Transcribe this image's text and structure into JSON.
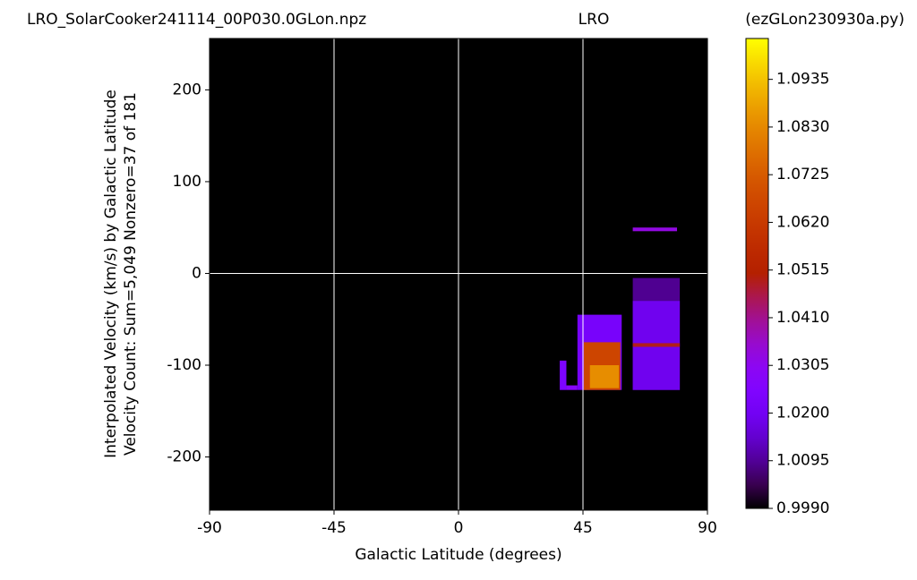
{
  "chart_data": {
    "type": "heatmap",
    "title": "LRO_SolarCooker241114_00P030.0GLon.npz",
    "subtitle": "LRO",
    "source": "(ezGLon230930a.py)",
    "xlabel": "Galactic Latitude (degrees)",
    "ylabel": [
      "Interpolated Velocity (km/s) by Galactic Latitude",
      "Velocity Count: Sum=5,049 Nonzero=37 of 181"
    ],
    "xlim": [
      -90,
      90
    ],
    "xticks": [
      -90,
      -45,
      0,
      45,
      90
    ],
    "ylim": [
      -258,
      256
    ],
    "yticks": [
      -200,
      -100,
      0,
      100,
      200
    ],
    "grid_x": true,
    "hlines": [
      0
    ],
    "colormap": "gnuplot",
    "clim": [
      0.999,
      1.1025
    ],
    "cticks": [
      {
        "value": 0.999,
        "label": "0.9990"
      },
      1.0095,
      {
        "value": 1.02,
        "label": "1.0200"
      },
      1.0305,
      {
        "value": 1.041,
        "label": "1.0410"
      },
      1.0515,
      {
        "value": 1.062,
        "label": "1.0620"
      },
      1.0725,
      {
        "value": 1.083,
        "label": "1.0830"
      },
      1.0935
    ],
    "cells": [
      {
        "x": [
          36.6,
          39
        ],
        "y": [
          -95,
          -127
        ],
        "value": 1.024
      },
      {
        "x": [
          39,
          43
        ],
        "y": [
          -122,
          -127
        ],
        "value": 1.028
      },
      {
        "x": [
          43,
          59
        ],
        "y": [
          -45,
          -127
        ],
        "value": 1.022
      },
      {
        "x": [
          45.3,
          58.5
        ],
        "y": [
          -75,
          -127
        ],
        "value": 1.066
      },
      {
        "x": [
          47.5,
          58
        ],
        "y": [
          -100,
          -125
        ],
        "value": 1.084
      },
      {
        "x": [
          63,
          80
        ],
        "y": [
          -5,
          -127
        ],
        "value": 1.009
      },
      {
        "x": [
          63,
          80
        ],
        "y": [
          -30,
          -127
        ],
        "value": 1.019
      },
      {
        "x": [
          63,
          80
        ],
        "y": [
          -76,
          -80
        ],
        "value": 1.049
      },
      {
        "x": [
          63,
          79
        ],
        "y": [
          46,
          50
        ],
        "value": 1.033
      }
    ]
  }
}
